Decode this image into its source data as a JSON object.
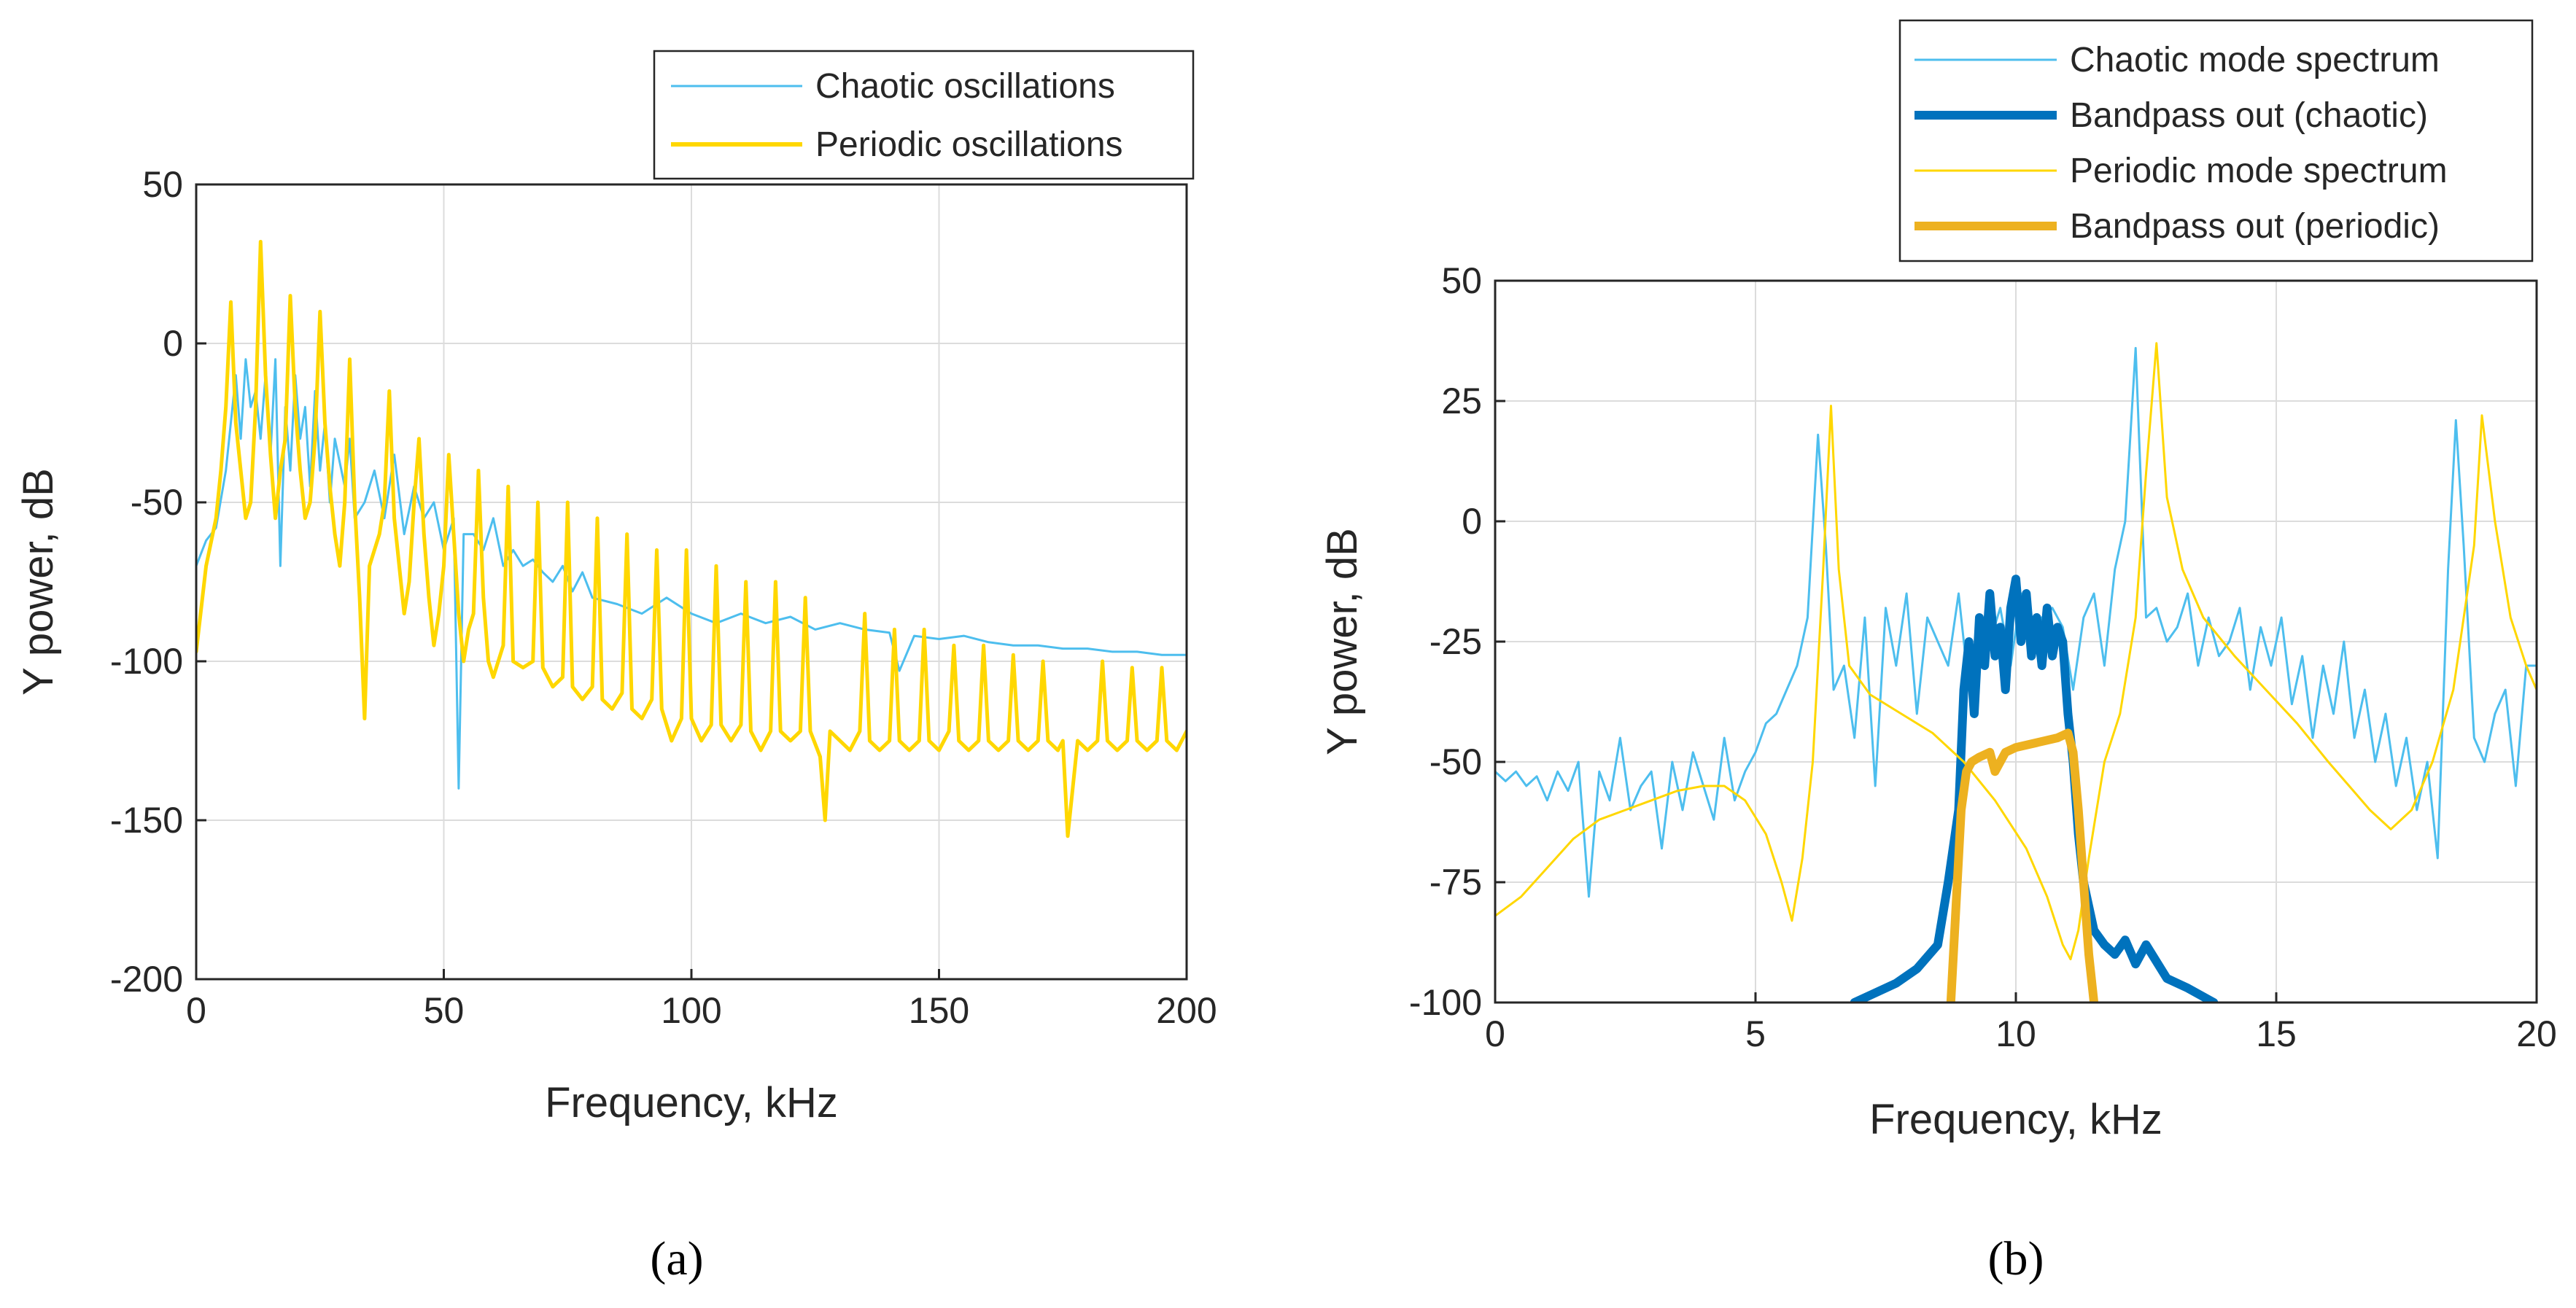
{
  "colors": {
    "chaotic_light": "#4DBEEE",
    "periodic_yellow": "#FFD700",
    "bandpass_chaotic": "#0072BD",
    "bandpass_periodic": "#EDB120",
    "grid": "#dcdcdc",
    "axis": "#262626"
  },
  "chart_data": [
    {
      "id": "a",
      "type": "line",
      "panel_label": "(a)",
      "xlabel": "Frequency, kHz",
      "ylabel": "Y power, dB",
      "xlim": [
        0,
        200
      ],
      "ylim": [
        -200,
        50
      ],
      "xticks": [
        0,
        50,
        100,
        150,
        200
      ],
      "yticks": [
        50,
        0,
        -50,
        -100,
        -150,
        -200
      ],
      "grid": true,
      "legend_position": "top-right (outside)",
      "series": [
        {
          "name": "Chaotic oscillations",
          "color": "#4DBEEE",
          "width": "thin",
          "x": [
            0,
            2,
            4,
            6,
            7,
            8,
            9,
            10,
            11,
            12,
            13,
            14,
            15,
            16,
            17,
            18,
            19,
            20,
            21,
            22,
            23,
            24,
            25,
            26,
            27,
            28,
            30,
            31,
            32,
            34,
            36,
            38,
            40,
            42,
            44,
            46,
            48,
            50,
            52,
            53,
            54,
            56,
            58,
            60,
            62,
            64,
            66,
            68,
            70,
            72,
            74,
            76,
            78,
            80,
            85,
            90,
            95,
            100,
            105,
            110,
            115,
            120,
            125,
            130,
            135,
            140,
            142,
            145,
            150,
            155,
            160,
            165,
            170,
            175,
            180,
            185,
            190,
            195,
            200
          ],
          "values": [
            -70,
            -62,
            -58,
            -40,
            -25,
            -10,
            -30,
            -5,
            -20,
            -15,
            -30,
            -10,
            -35,
            -5,
            -70,
            -20,
            -40,
            -10,
            -30,
            -20,
            -45,
            -15,
            -40,
            -25,
            -50,
            -30,
            -45,
            -30,
            -55,
            -50,
            -40,
            -55,
            -35,
            -60,
            -45,
            -55,
            -50,
            -65,
            -55,
            -140,
            -60,
            -60,
            -65,
            -55,
            -70,
            -65,
            -70,
            -68,
            -72,
            -75,
            -70,
            -78,
            -72,
            -80,
            -82,
            -85,
            -80,
            -85,
            -88,
            -85,
            -88,
            -86,
            -90,
            -88,
            -90,
            -91,
            -103,
            -92,
            -93,
            -92,
            -94,
            -95,
            -95,
            -96,
            -96,
            -97,
            -97,
            -98,
            -98
          ]
        },
        {
          "name": "Periodic oscillations",
          "color": "#FFD700",
          "width": "medium",
          "x": [
            0,
            2,
            4,
            5,
            6,
            7,
            8,
            9,
            10,
            11,
            12,
            13,
            14,
            15,
            16,
            17,
            18,
            19,
            20,
            21,
            22,
            23,
            24,
            25,
            26,
            27,
            28,
            29,
            30,
            31,
            32,
            33,
            34,
            35,
            36,
            37,
            38,
            39,
            40,
            41,
            42,
            43,
            44,
            45,
            46,
            47,
            48,
            49,
            50,
            51,
            52,
            53,
            54,
            55,
            56,
            57,
            58,
            59,
            60,
            62,
            63,
            64,
            66,
            68,
            69,
            70,
            72,
            74,
            75,
            76,
            78,
            80,
            81,
            82,
            84,
            86,
            87,
            88,
            90,
            92,
            93,
            94,
            96,
            98,
            99,
            100,
            102,
            104,
            105,
            106,
            108,
            110,
            111,
            112,
            114,
            116,
            117,
            118,
            120,
            122,
            123,
            124,
            126,
            127,
            128,
            130,
            132,
            134,
            135,
            136,
            138,
            140,
            141,
            142,
            144,
            146,
            147,
            148,
            150,
            152,
            153,
            154,
            156,
            158,
            159,
            160,
            162,
            164,
            165,
            166,
            168,
            170,
            171,
            172,
            174,
            175,
            176,
            178,
            180,
            182,
            183,
            184,
            186,
            188,
            189,
            190,
            192,
            194,
            195,
            196,
            198,
            200
          ],
          "values": [
            -97,
            -70,
            -55,
            -40,
            -20,
            13,
            -25,
            -40,
            -55,
            -50,
            -20,
            32,
            -10,
            -35,
            -55,
            -40,
            -30,
            15,
            -20,
            -40,
            -55,
            -50,
            -30,
            10,
            -25,
            -45,
            -60,
            -70,
            -50,
            -5,
            -50,
            -80,
            -118,
            -70,
            -65,
            -60,
            -50,
            -15,
            -55,
            -70,
            -85,
            -75,
            -50,
            -30,
            -60,
            -80,
            -95,
            -85,
            -70,
            -35,
            -60,
            -85,
            -100,
            -90,
            -85,
            -40,
            -80,
            -100,
            -105,
            -95,
            -45,
            -100,
            -102,
            -100,
            -50,
            -102,
            -108,
            -105,
            -50,
            -108,
            -112,
            -108,
            -55,
            -112,
            -115,
            -110,
            -60,
            -115,
            -118,
            -112,
            -65,
            -115,
            -125,
            -118,
            -65,
            -118,
            -125,
            -120,
            -70,
            -120,
            -125,
            -120,
            -75,
            -122,
            -128,
            -122,
            -75,
            -122,
            -125,
            -122,
            -80,
            -122,
            -130,
            -150,
            -122,
            -125,
            -128,
            -122,
            -85,
            -125,
            -128,
            -125,
            -90,
            -125,
            -128,
            -125,
            -90,
            -125,
            -128,
            -122,
            -95,
            -125,
            -128,
            -125,
            -95,
            -125,
            -128,
            -125,
            -98,
            -125,
            -128,
            -125,
            -100,
            -125,
            -128,
            -125,
            -155,
            -125,
            -128,
            -125,
            -100,
            -125,
            -128,
            -125,
            -102,
            -125,
            -128,
            -125,
            -102,
            -125,
            -128,
            -122
          ]
        }
      ]
    },
    {
      "id": "b",
      "type": "line",
      "panel_label": "(b)",
      "xlabel": "Frequency, kHz",
      "ylabel": "Y power, dB",
      "xlim": [
        0,
        20
      ],
      "ylim": [
        -100,
        50
      ],
      "xticks": [
        0,
        5,
        10,
        15,
        20
      ],
      "yticks": [
        50,
        25,
        0,
        -25,
        -50,
        -75,
        -100
      ],
      "grid": true,
      "legend_position": "top-right (outside)",
      "series": [
        {
          "name": "Chaotic mode spectrum",
          "color": "#4DBEEE",
          "width": "thin",
          "x": [
            0,
            0.2,
            0.4,
            0.6,
            0.8,
            1,
            1.2,
            1.4,
            1.6,
            1.8,
            2,
            2.2,
            2.4,
            2.6,
            2.8,
            3,
            3.2,
            3.4,
            3.6,
            3.8,
            4,
            4.2,
            4.4,
            4.6,
            4.8,
            5,
            5.2,
            5.4,
            5.6,
            5.8,
            6,
            6.2,
            6.35,
            6.5,
            6.7,
            6.9,
            7.1,
            7.3,
            7.5,
            7.7,
            7.9,
            8.1,
            8.3,
            8.5,
            8.7,
            8.9,
            9.1,
            9.3,
            9.5,
            9.7,
            9.9,
            10.1,
            10.3,
            10.5,
            10.7,
            10.9,
            11.1,
            11.3,
            11.5,
            11.7,
            11.9,
            12.1,
            12.3,
            12.5,
            12.7,
            12.9,
            13.1,
            13.3,
            13.5,
            13.7,
            13.9,
            14.1,
            14.3,
            14.5,
            14.7,
            14.9,
            15.1,
            15.3,
            15.5,
            15.7,
            15.9,
            16.1,
            16.3,
            16.5,
            16.7,
            16.9,
            17.1,
            17.3,
            17.5,
            17.7,
            17.9,
            18.1,
            18.3,
            18.45,
            18.6,
            18.8,
            19,
            19.2,
            19.4,
            19.6,
            19.8,
            20
          ],
          "values": [
            -52,
            -54,
            -52,
            -55,
            -53,
            -58,
            -52,
            -56,
            -50,
            -78,
            -52,
            -58,
            -45,
            -60,
            -55,
            -52,
            -68,
            -50,
            -60,
            -48,
            -55,
            -62,
            -45,
            -58,
            -52,
            -48,
            -42,
            -40,
            -35,
            -30,
            -20,
            18,
            -5,
            -35,
            -30,
            -45,
            -20,
            -55,
            -18,
            -30,
            -15,
            -40,
            -20,
            -25,
            -30,
            -15,
            -35,
            -22,
            -25,
            -18,
            -30,
            -15,
            -25,
            -20,
            -18,
            -22,
            -35,
            -20,
            -15,
            -30,
            -10,
            0,
            36,
            -20,
            -18,
            -25,
            -22,
            -15,
            -30,
            -20,
            -28,
            -25,
            -18,
            -35,
            -22,
            -30,
            -20,
            -38,
            -28,
            -45,
            -30,
            -40,
            -25,
            -45,
            -35,
            -50,
            -40,
            -55,
            -45,
            -60,
            -50,
            -70,
            -10,
            21,
            -5,
            -45,
            -50,
            -40,
            -35,
            -55,
            -30,
            -30
          ]
        },
        {
          "name": "Bandpass out (chaotic)",
          "color": "#0072BD",
          "width": "thick",
          "x": [
            6.9,
            7.3,
            7.7,
            8.1,
            8.5,
            8.7,
            8.9,
            9.0,
            9.1,
            9.2,
            9.3,
            9.4,
            9.5,
            9.6,
            9.7,
            9.8,
            9.9,
            10.0,
            10.1,
            10.2,
            10.3,
            10.4,
            10.5,
            10.6,
            10.7,
            10.8,
            10.9,
            11.0,
            11.1,
            11.2,
            11.3,
            11.5,
            11.7,
            11.9,
            12.1,
            12.3,
            12.5,
            12.9,
            13.3,
            13.8
          ],
          "values": [
            -100,
            -98,
            -96,
            -93,
            -88,
            -75,
            -60,
            -35,
            -25,
            -40,
            -20,
            -30,
            -15,
            -28,
            -22,
            -35,
            -18,
            -12,
            -25,
            -15,
            -28,
            -20,
            -30,
            -18,
            -28,
            -22,
            -25,
            -40,
            -50,
            -65,
            -75,
            -85,
            -88,
            -90,
            -87,
            -92,
            -88,
            -95,
            -97,
            -100
          ]
        },
        {
          "name": "Periodic mode spectrum",
          "color": "#FFD700",
          "width": "thin",
          "x": [
            0,
            0.5,
            1,
            1.5,
            2,
            2.5,
            3,
            3.5,
            4,
            4.4,
            4.8,
            5.2,
            5.5,
            5.7,
            5.9,
            6.1,
            6.3,
            6.45,
            6.6,
            6.8,
            7.2,
            7.8,
            8.4,
            9.0,
            9.6,
            10.2,
            10.6,
            10.9,
            11.05,
            11.2,
            11.4,
            11.7,
            12.0,
            12.3,
            12.5,
            12.7,
            12.9,
            13.2,
            13.6,
            14.2,
            14.8,
            15.4,
            16.0,
            16.4,
            16.8,
            17.2,
            17.6,
            18.0,
            18.4,
            18.8,
            18.95,
            19.2,
            19.5,
            19.8,
            20
          ],
          "values": [
            -82,
            -78,
            -72,
            -66,
            -62,
            -60,
            -58,
            -56,
            -55,
            -55,
            -58,
            -65,
            -75,
            -83,
            -70,
            -50,
            -10,
            24,
            -10,
            -30,
            -36,
            -40,
            -44,
            -50,
            -58,
            -68,
            -78,
            -88,
            -91,
            -85,
            -70,
            -50,
            -40,
            -20,
            10,
            37,
            5,
            -10,
            -20,
            -28,
            -35,
            -42,
            -50,
            -55,
            -60,
            -64,
            -60,
            -50,
            -35,
            -5,
            22,
            0,
            -20,
            -30,
            -35
          ]
        },
        {
          "name": "Bandpass out (periodic)",
          "color": "#EDB120",
          "width": "thick",
          "x": [
            8.75,
            8.85,
            8.95,
            9.05,
            9.15,
            9.3,
            9.5,
            9.6,
            9.8,
            10.0,
            10.4,
            10.8,
            11.0,
            11.1,
            11.2,
            11.3,
            11.4,
            11.5
          ],
          "values": [
            -100,
            -80,
            -60,
            -52,
            -50,
            -49,
            -48,
            -52,
            -48,
            -47,
            -46,
            -45,
            -44,
            -48,
            -60,
            -75,
            -90,
            -100
          ]
        }
      ]
    }
  ]
}
